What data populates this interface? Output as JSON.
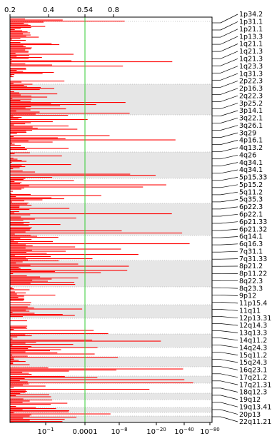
{
  "chart_data": {
    "type": "bar",
    "orientation": "horizontal",
    "title": "",
    "xlabel": "",
    "ylabel": "",
    "top_axis": {
      "ticks": [
        {
          "value": 0.2,
          "label": "0.2"
        },
        {
          "value": 0.4,
          "label": "0.4"
        },
        {
          "value": 0.54,
          "label": "0.54"
        },
        {
          "value": 0.8,
          "label": "0.8"
        }
      ]
    },
    "bottom_axis": {
      "scale": "log p-value",
      "ticks": [
        {
          "exponent": -1,
          "label": "10^-1",
          "base": "10",
          "sup": "−1"
        },
        {
          "exponent": -4,
          "label": "0.0001",
          "base": "0.0001",
          "sup": ""
        },
        {
          "exponent": -8,
          "label": "10^-8",
          "base": "10",
          "sup": "−8"
        },
        {
          "exponent": -20,
          "label": "10^-20",
          "base": "10",
          "sup": "−20"
        },
        {
          "exponent": -40,
          "label": "10^-40",
          "base": "10",
          "sup": "−40"
        },
        {
          "exponent": -80,
          "label": "10^-80",
          "base": "10",
          "sup": "−80"
        }
      ]
    },
    "threshold": {
      "value": 0.54,
      "color": "#33cc33"
    },
    "bar_color": "#ff0000",
    "band_color": "#e6e6e6",
    "grid": "dotted row separators",
    "cytobands": [
      "1p34.2",
      "1p31.1",
      "1p21.1",
      "1p13.3",
      "1q21.1",
      "1q21.3",
      "1q21.3",
      "1q23.3",
      "1q31.3",
      "2p22.3",
      "2p16.3",
      "2q22.3",
      "3p25.2",
      "3p14.1",
      "3q22.1",
      "3q26.1",
      "3q29",
      "4p16.1",
      "4q13.2",
      "4q26",
      "4q34.1",
      "4q34.1",
      "5p15.33",
      "5p15.2",
      "5q11.2",
      "5q35.3",
      "6p22.3",
      "6p22.1",
      "6p21.33",
      "6p21.32",
      "6q14.1",
      "6q16.3",
      "7q31.1",
      "7q31.33",
      "8p21.2",
      "8p11.22",
      "8q22.3",
      "8q23.3",
      "9p12",
      "11p15.4",
      "11q11",
      "12p13.31",
      "12q14.3",
      "13q13.3",
      "14q11.2",
      "14q24.3",
      "15q11.2",
      "15q24.3",
      "16q23.1",
      "17q21.2",
      "17q21.31",
      "18q12.3",
      "19q12",
      "19q13.41",
      "20p13",
      "22q11.21"
    ],
    "chromosome_bands": [
      {
        "chrom": "1",
        "y_start": 30,
        "y_end": 118,
        "shaded": false
      },
      {
        "chrom": "2",
        "y_start": 118,
        "y_end": 161,
        "shaded": true
      },
      {
        "chrom": "3",
        "y_start": 161,
        "y_end": 213,
        "shaded": false
      },
      {
        "chrom": "4",
        "y_start": 213,
        "y_end": 250,
        "shaded": true
      },
      {
        "chrom": "5",
        "y_start": 250,
        "y_end": 285,
        "shaded": false
      },
      {
        "chrom": "6",
        "y_start": 285,
        "y_end": 330,
        "shaded": true
      },
      {
        "chrom": "7",
        "y_start": 330,
        "y_end": 365,
        "shaded": false
      },
      {
        "chrom": "8",
        "y_start": 365,
        "y_end": 402,
        "shaded": true
      },
      {
        "chrom": "9",
        "y_start": 402,
        "y_end": 427,
        "shaded": false
      },
      {
        "chrom": "10",
        "y_start": 427,
        "y_end": 446,
        "shaded": true
      },
      {
        "chrom": "11",
        "y_start": 446,
        "y_end": 468,
        "shaded": false
      },
      {
        "chrom": "12",
        "y_start": 468,
        "y_end": 487,
        "shaded": true
      },
      {
        "chrom": "13",
        "y_start": 487,
        "y_end": 500,
        "shaded": false
      },
      {
        "chrom": "14",
        "y_start": 500,
        "y_end": 514,
        "shaded": true
      },
      {
        "chrom": "15",
        "y_start": 514,
        "y_end": 527,
        "shaded": false
      },
      {
        "chrom": "16",
        "y_start": 527,
        "y_end": 537,
        "shaded": true
      },
      {
        "chrom": "17",
        "y_start": 537,
        "y_end": 551,
        "shaded": false
      },
      {
        "chrom": "18",
        "y_start": 551,
        "y_end": 560,
        "shaded": true
      },
      {
        "chrom": "19",
        "y_start": 560,
        "y_end": 571,
        "shaded": false
      },
      {
        "chrom": "20",
        "y_start": 571,
        "y_end": 578,
        "shaded": true
      },
      {
        "chrom": "21",
        "y_start": 578,
        "y_end": 583,
        "shaded": false
      },
      {
        "chrom": "22",
        "y_start": 583,
        "y_end": 592,
        "shaded": true
      }
    ]
  }
}
